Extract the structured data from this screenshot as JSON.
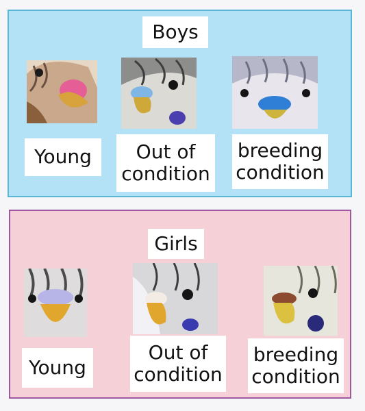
{
  "boys": {
    "title": "Boys",
    "border_color": "#5ab6d6",
    "background_color": "#b3e1f5",
    "items": [
      {
        "label": "Young",
        "cere_color": "#e55f96"
      },
      {
        "label": "Out of\ncondition",
        "cere_color": "#7fb6e6"
      },
      {
        "label": "breeding\ncondition",
        "cere_color": "#2f7fd6"
      }
    ]
  },
  "girls": {
    "title": "Girls",
    "border_color": "#9b5aa0",
    "background_color": "#f6d0d7",
    "items": [
      {
        "label": "Young",
        "cere_color": "#b7b4e8"
      },
      {
        "label": "Out of\ncondition",
        "cere_color": "#f2ece4"
      },
      {
        "label": "breeding\ncondition",
        "cere_color": "#8c4a30"
      }
    ]
  }
}
